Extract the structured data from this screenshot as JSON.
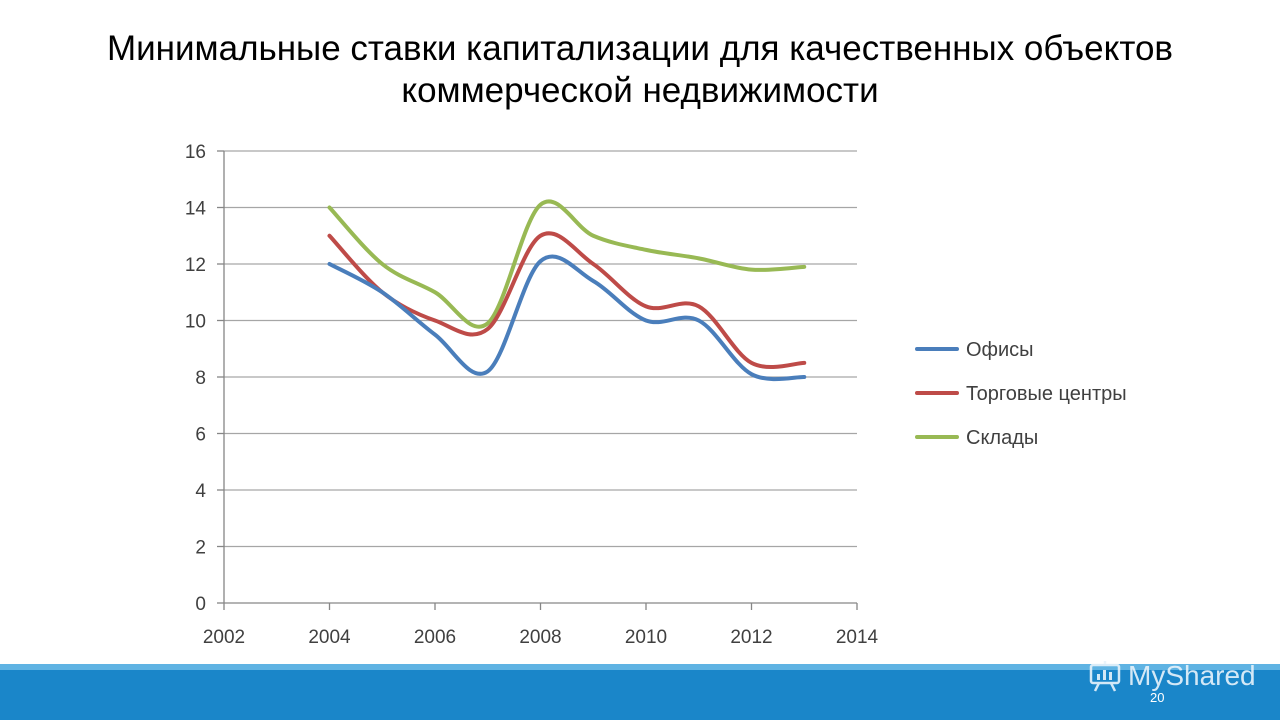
{
  "slide": {
    "title_line1": "Минимальные ставки капитализации для качественных объектов",
    "title_line2": "коммерческой недвижимости",
    "page_number": "20",
    "watermark": "MyShared"
  },
  "colors": {
    "footer": "#1a86c9",
    "gridline": "#a6a6a6",
    "axis": "#868686"
  },
  "chart_data": {
    "type": "line",
    "title": "",
    "xlabel": "",
    "ylabel": "",
    "xlim": [
      2002,
      2014
    ],
    "ylim": [
      0,
      16
    ],
    "x_ticks": [
      "2002",
      "2004",
      "2006",
      "2008",
      "2010",
      "2012",
      "2014"
    ],
    "y_ticks": [
      "0",
      "2",
      "4",
      "6",
      "8",
      "10",
      "12",
      "14",
      "16"
    ],
    "grid": "horizontal",
    "legend_position": "right",
    "x": [
      2004,
      2005,
      2006,
      2007,
      2008,
      2009,
      2010,
      2011,
      2012,
      2013
    ],
    "series": [
      {
        "name": "Офисы",
        "color": "#4a7ebb",
        "values": [
          12,
          11,
          9.5,
          8.2,
          12.1,
          11.4,
          10,
          10,
          8.1,
          8
        ]
      },
      {
        "name": "Торговые центры",
        "color": "#be4b48",
        "values": [
          13,
          11,
          10,
          9.7,
          13,
          12,
          10.5,
          10.5,
          8.5,
          8.5
        ]
      },
      {
        "name": "Склады",
        "color": "#98b954",
        "values": [
          14,
          12,
          11,
          9.9,
          14.1,
          13,
          12.5,
          12.2,
          11.8,
          11.9
        ]
      }
    ]
  }
}
